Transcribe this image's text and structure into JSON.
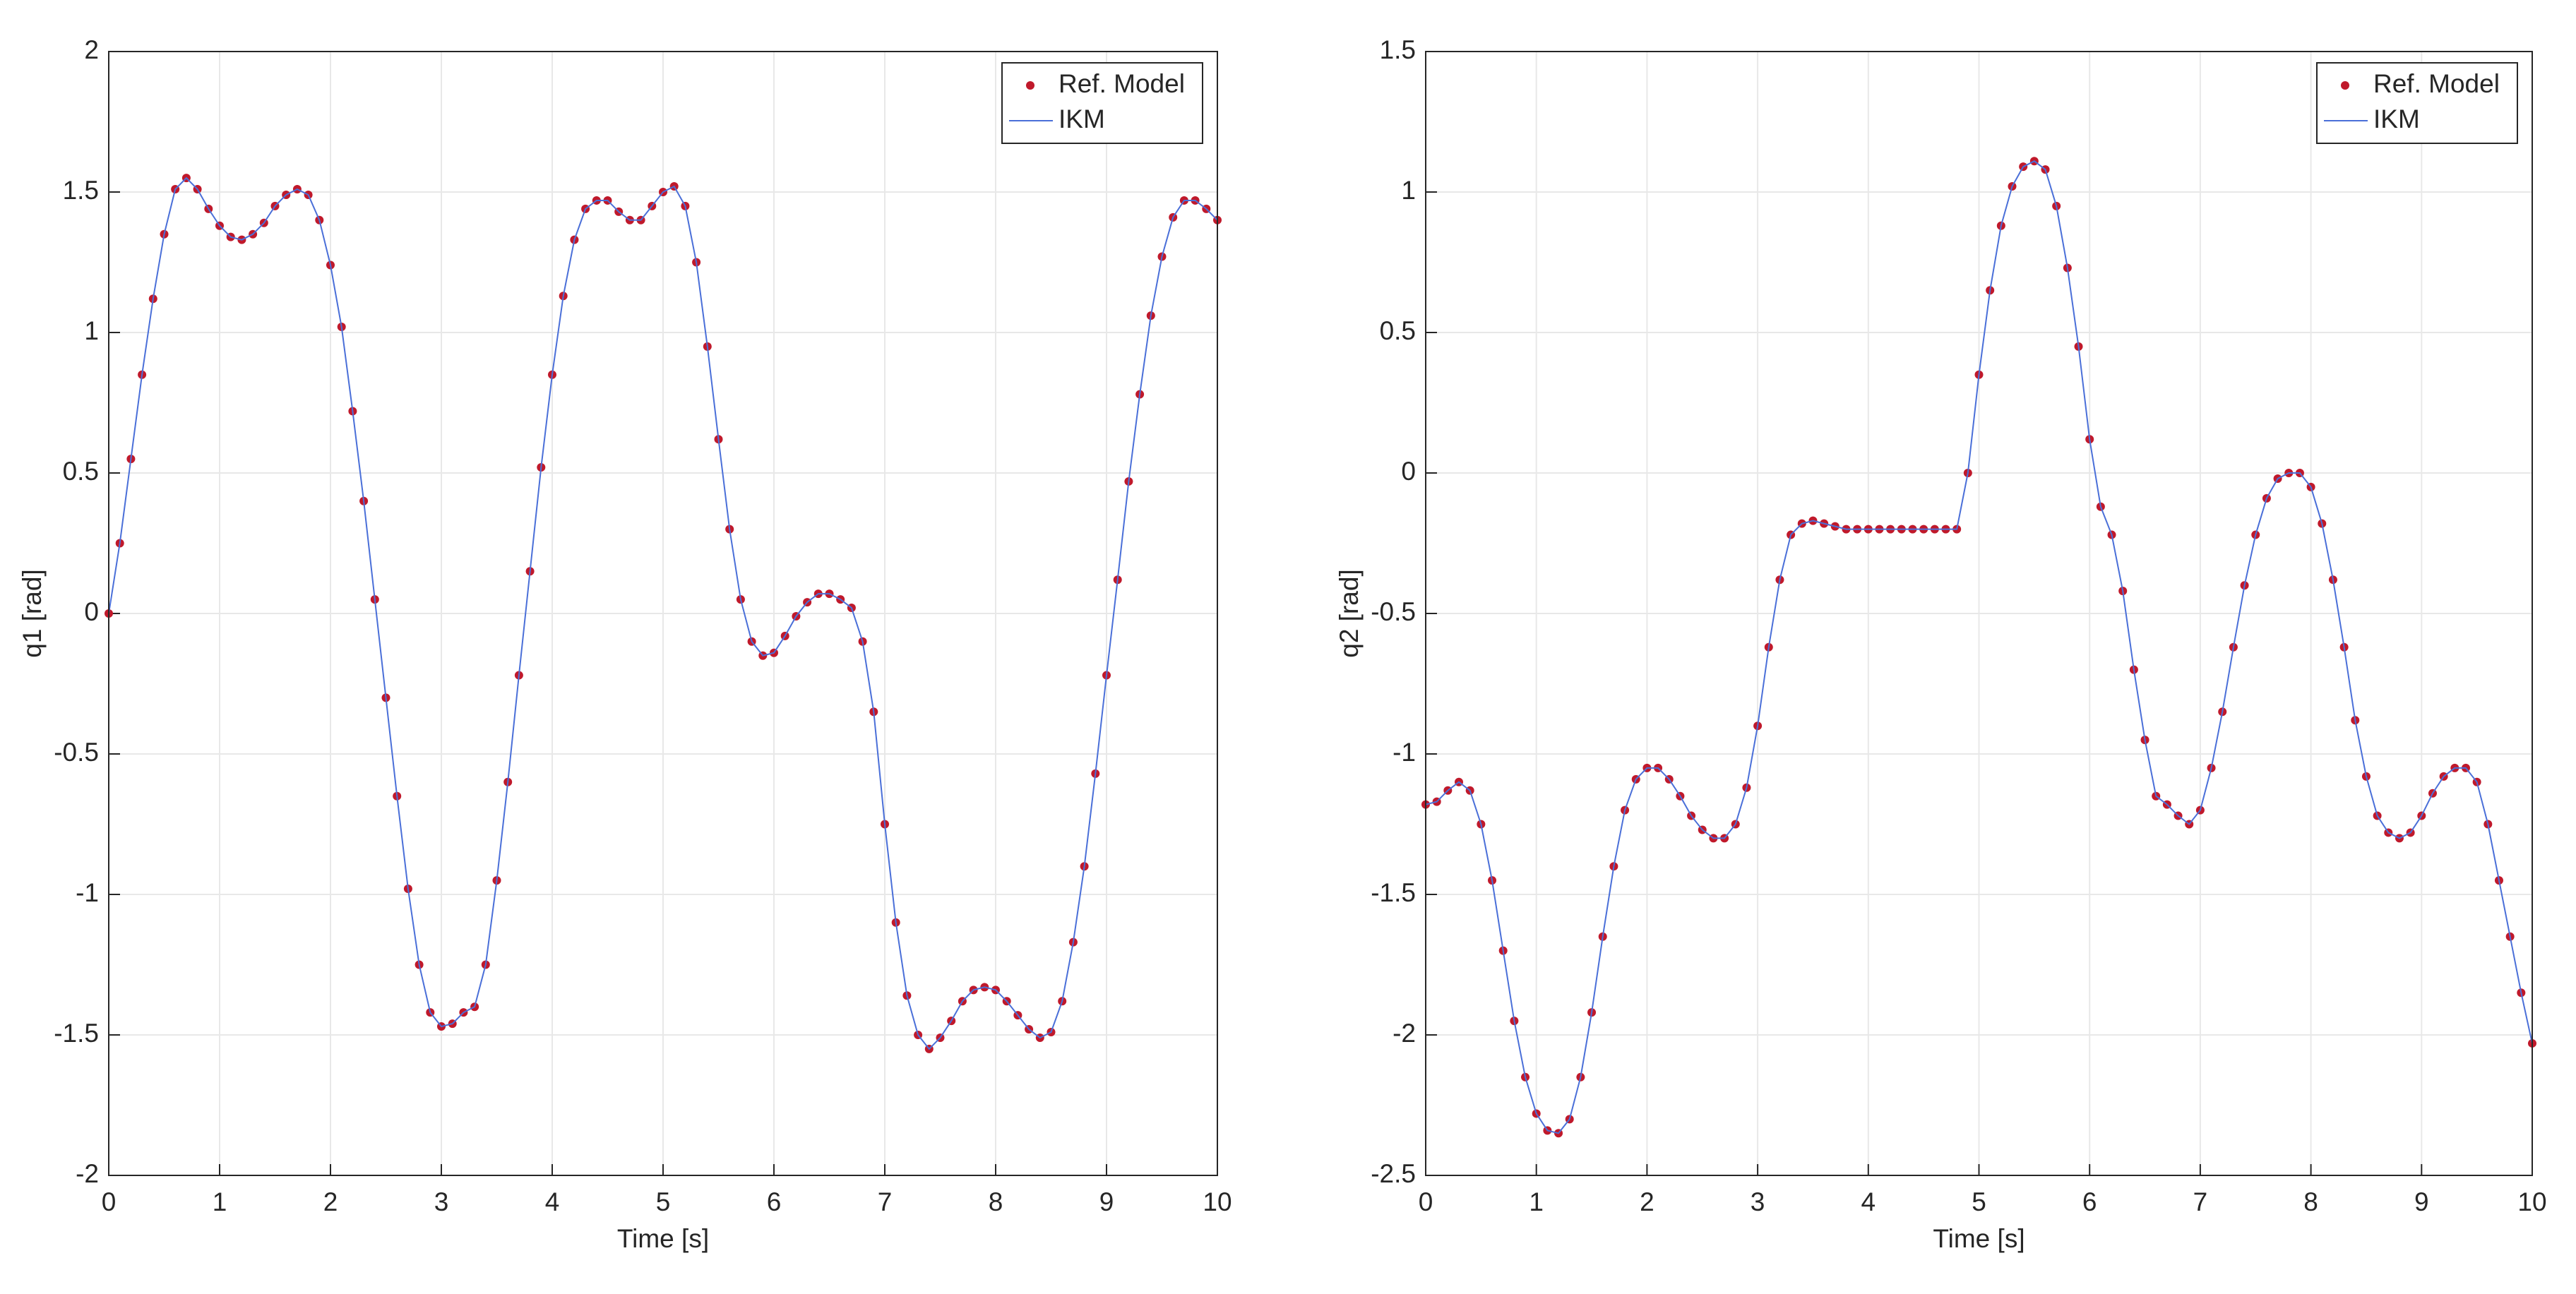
{
  "chart_data": [
    {
      "type": "line",
      "xlabel": "Time [s]",
      "ylabel": "q1 [rad]",
      "grid": true,
      "legend": "upper right",
      "xlim": [
        0,
        10
      ],
      "xticks": [
        0,
        1,
        2,
        3,
        4,
        5,
        6,
        7,
        8,
        9,
        10
      ],
      "ylim": [
        -2,
        2
      ],
      "yticks": [
        -2,
        -1.5,
        -1,
        -0.5,
        0,
        0.5,
        1,
        1.5,
        2
      ],
      "x": [
        0,
        0.1,
        0.2,
        0.3,
        0.4,
        0.5,
        0.6,
        0.7,
        0.8,
        0.9,
        1,
        1.1,
        1.2,
        1.3,
        1.4,
        1.5,
        1.6,
        1.7,
        1.8,
        1.9,
        2,
        2.1,
        2.2,
        2.3,
        2.4,
        2.5,
        2.6,
        2.7,
        2.8,
        2.9,
        3,
        3.1,
        3.2,
        3.3,
        3.4,
        3.5,
        3.6,
        3.7,
        3.8,
        3.9,
        4,
        4.1,
        4.2,
        4.3,
        4.4,
        4.5,
        4.6,
        4.7,
        4.8,
        4.9,
        5,
        5.1,
        5.2,
        5.3,
        5.4,
        5.5,
        5.6,
        5.7,
        5.8,
        5.9,
        6,
        6.1,
        6.2,
        6.3,
        6.4,
        6.5,
        6.6,
        6.7,
        6.8,
        6.9,
        7,
        7.1,
        7.2,
        7.3,
        7.4,
        7.5,
        7.6,
        7.7,
        7.8,
        7.9,
        8,
        8.1,
        8.2,
        8.3,
        8.4,
        8.5,
        8.6,
        8.7,
        8.8,
        8.9,
        9,
        9.1,
        9.2,
        9.3,
        9.4,
        9.5,
        9.6,
        9.7,
        9.8,
        9.9,
        10
      ],
      "series": [
        {
          "name": "Ref. Model",
          "color": "#c0192b",
          "mode": "markers",
          "values": [
            0,
            0.25,
            0.55,
            0.85,
            1.12,
            1.35,
            1.51,
            1.55,
            1.51,
            1.44,
            1.38,
            1.34,
            1.33,
            1.35,
            1.39,
            1.45,
            1.49,
            1.51,
            1.49,
            1.4,
            1.24,
            1.02,
            0.72,
            0.4,
            0.05,
            -0.3,
            -0.65,
            -0.98,
            -1.25,
            -1.42,
            -1.47,
            -1.46,
            -1.42,
            -1.4,
            -1.25,
            -0.95,
            -0.6,
            -0.22,
            0.15,
            0.52,
            0.85,
            1.13,
            1.33,
            1.44,
            1.47,
            1.47,
            1.43,
            1.4,
            1.4,
            1.45,
            1.5,
            1.52,
            1.45,
            1.25,
            0.95,
            0.62,
            0.3,
            0.05,
            -0.1,
            -0.15,
            -0.14,
            -0.08,
            -0.01,
            0.04,
            0.07,
            0.07,
            0.05,
            0.02,
            -0.1,
            -0.35,
            -0.75,
            -1.1,
            -1.36,
            -1.5,
            -1.55,
            -1.51,
            -1.45,
            -1.38,
            -1.34,
            -1.33,
            -1.34,
            -1.38,
            -1.43,
            -1.48,
            -1.51,
            -1.49,
            -1.38,
            -1.17,
            -0.9,
            -0.57,
            -0.22,
            0.12,
            0.47,
            0.78,
            1.06,
            1.27,
            1.41,
            1.47,
            1.47,
            1.44,
            1.4
          ]
        },
        {
          "name": "IKM",
          "color": "#4a6fd8",
          "mode": "lines",
          "values": [
            0,
            0.25,
            0.55,
            0.85,
            1.12,
            1.35,
            1.51,
            1.55,
            1.51,
            1.44,
            1.38,
            1.34,
            1.33,
            1.35,
            1.39,
            1.45,
            1.49,
            1.51,
            1.49,
            1.4,
            1.24,
            1.02,
            0.72,
            0.4,
            0.05,
            -0.3,
            -0.65,
            -0.98,
            -1.25,
            -1.42,
            -1.47,
            -1.46,
            -1.42,
            -1.4,
            -1.25,
            -0.95,
            -0.6,
            -0.22,
            0.15,
            0.52,
            0.85,
            1.13,
            1.33,
            1.44,
            1.47,
            1.47,
            1.43,
            1.4,
            1.4,
            1.45,
            1.5,
            1.52,
            1.45,
            1.25,
            0.95,
            0.62,
            0.3,
            0.05,
            -0.1,
            -0.15,
            -0.14,
            -0.08,
            -0.01,
            0.04,
            0.07,
            0.07,
            0.05,
            0.02,
            -0.1,
            -0.35,
            -0.75,
            -1.1,
            -1.36,
            -1.5,
            -1.55,
            -1.51,
            -1.45,
            -1.38,
            -1.34,
            -1.33,
            -1.34,
            -1.38,
            -1.43,
            -1.48,
            -1.51,
            -1.49,
            -1.38,
            -1.17,
            -0.9,
            -0.57,
            -0.22,
            0.12,
            0.47,
            0.78,
            1.06,
            1.27,
            1.41,
            1.47,
            1.47,
            1.44,
            1.4
          ]
        }
      ]
    },
    {
      "type": "line",
      "xlabel": "Time [s]",
      "ylabel": "q2 [rad]",
      "grid": true,
      "legend": "upper right",
      "xlim": [
        0,
        10
      ],
      "xticks": [
        0,
        1,
        2,
        3,
        4,
        5,
        6,
        7,
        8,
        9,
        10
      ],
      "ylim": [
        -2.5,
        1.5
      ],
      "yticks": [
        -2.5,
        -2,
        -1.5,
        -1,
        -0.5,
        0,
        0.5,
        1,
        1.5
      ],
      "x": [
        0,
        0.1,
        0.2,
        0.3,
        0.4,
        0.5,
        0.6,
        0.7,
        0.8,
        0.9,
        1,
        1.1,
        1.2,
        1.3,
        1.4,
        1.5,
        1.6,
        1.7,
        1.8,
        1.9,
        2,
        2.1,
        2.2,
        2.3,
        2.4,
        2.5,
        2.6,
        2.7,
        2.8,
        2.9,
        3,
        3.1,
        3.2,
        3.3,
        3.4,
        3.5,
        3.6,
        3.7,
        3.8,
        3.9,
        4,
        4.1,
        4.2,
        4.3,
        4.4,
        4.5,
        4.6,
        4.7,
        4.8,
        4.9,
        5,
        5.1,
        5.2,
        5.3,
        5.4,
        5.5,
        5.6,
        5.7,
        5.8,
        5.9,
        6,
        6.1,
        6.2,
        6.3,
        6.4,
        6.5,
        6.6,
        6.7,
        6.8,
        6.9,
        7,
        7.1,
        7.2,
        7.3,
        7.4,
        7.5,
        7.6,
        7.7,
        7.8,
        7.9,
        8,
        8.1,
        8.2,
        8.3,
        8.4,
        8.5,
        8.6,
        8.7,
        8.8,
        8.9,
        9,
        9.1,
        9.2,
        9.3,
        9.4,
        9.5,
        9.6,
        9.7,
        9.8,
        9.9,
        10
      ],
      "series": [
        {
          "name": "Ref. Model",
          "color": "#c0192b",
          "mode": "markers",
          "values": [
            -1.18,
            -1.17,
            -1.13,
            -1.1,
            -1.13,
            -1.25,
            -1.45,
            -1.7,
            -1.95,
            -2.15,
            -2.28,
            -2.34,
            -2.35,
            -2.3,
            -2.15,
            -1.92,
            -1.65,
            -1.4,
            -1.2,
            -1.09,
            -1.05,
            -1.05,
            -1.09,
            -1.15,
            -1.22,
            -1.27,
            -1.3,
            -1.3,
            -1.25,
            -1.12,
            -0.9,
            -0.62,
            -0.38,
            -0.22,
            -0.18,
            -0.17,
            -0.18,
            -0.19,
            -0.2,
            -0.2,
            -0.2,
            -0.2,
            -0.2,
            -0.2,
            -0.2,
            -0.2,
            -0.2,
            -0.2,
            -0.2,
            0,
            0.35,
            0.65,
            0.88,
            1.02,
            1.09,
            1.11,
            1.08,
            0.95,
            0.73,
            0.45,
            0.12,
            -0.12,
            -0.22,
            -0.42,
            -0.7,
            -0.95,
            -1.15,
            -1.18,
            -1.22,
            -1.25,
            -1.2,
            -1.05,
            -0.85,
            -0.62,
            -0.4,
            -0.22,
            -0.09,
            -0.02,
            0,
            0,
            -0.05,
            -0.18,
            -0.38,
            -0.62,
            -0.88,
            -1.08,
            -1.22,
            -1.28,
            -1.3,
            -1.28,
            -1.22,
            -1.14,
            -1.08,
            -1.05,
            -1.05,
            -1.1,
            -1.25,
            -1.45,
            -1.65,
            -1.85,
            -2.03
          ]
        },
        {
          "name": "IKM",
          "color": "#4a6fd8",
          "mode": "lines",
          "values": [
            -1.18,
            -1.17,
            -1.13,
            -1.1,
            -1.13,
            -1.25,
            -1.45,
            -1.7,
            -1.95,
            -2.15,
            -2.28,
            -2.34,
            -2.35,
            -2.3,
            -2.15,
            -1.92,
            -1.65,
            -1.4,
            -1.2,
            -1.09,
            -1.05,
            -1.05,
            -1.09,
            -1.15,
            -1.22,
            -1.27,
            -1.3,
            -1.3,
            -1.25,
            -1.12,
            -0.9,
            -0.62,
            -0.38,
            -0.22,
            -0.18,
            -0.17,
            -0.18,
            -0.19,
            -0.2,
            -0.2,
            -0.2,
            -0.2,
            -0.2,
            -0.2,
            -0.2,
            -0.2,
            -0.2,
            -0.2,
            -0.2,
            0,
            0.35,
            0.65,
            0.88,
            1.02,
            1.09,
            1.11,
            1.08,
            0.95,
            0.73,
            0.45,
            0.12,
            -0.12,
            -0.22,
            -0.42,
            -0.7,
            -0.95,
            -1.15,
            -1.18,
            -1.22,
            -1.25,
            -1.2,
            -1.05,
            -0.85,
            -0.62,
            -0.4,
            -0.22,
            -0.09,
            -0.02,
            0,
            0,
            -0.05,
            -0.18,
            -0.38,
            -0.62,
            -0.88,
            -1.08,
            -1.22,
            -1.28,
            -1.3,
            -1.28,
            -1.22,
            -1.14,
            -1.08,
            -1.05,
            -1.05,
            -1.1,
            -1.25,
            -1.45,
            -1.65,
            -1.85,
            -2.03
          ]
        }
      ]
    }
  ]
}
